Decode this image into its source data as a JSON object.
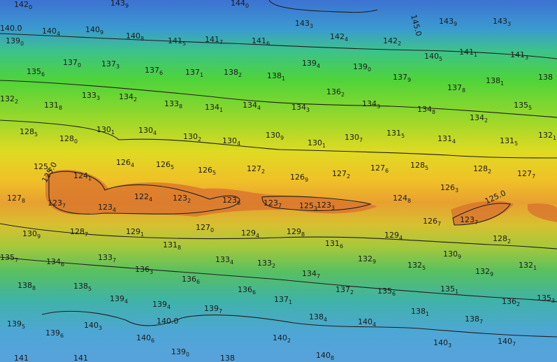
{
  "contour_labels": [
    "140.0",
    "145.0",
    "125.0",
    "125.0",
    "140.0"
  ],
  "soundings": [
    [
      "142",
      "0"
    ],
    [
      "143",
      "9"
    ],
    [
      "144",
      "0"
    ],
    [
      "140",
      "4"
    ],
    [
      "140",
      "9"
    ],
    [
      "140",
      "8"
    ],
    [
      "141",
      "5"
    ],
    [
      "141",
      "7"
    ],
    [
      "141",
      "6"
    ],
    [
      "143",
      "3"
    ],
    [
      "142",
      "4"
    ],
    [
      "142",
      "2"
    ],
    [
      "143",
      "9"
    ],
    [
      "143",
      "3"
    ],
    [
      "139",
      "0"
    ],
    [
      "137",
      "0"
    ],
    [
      "137",
      "3"
    ],
    [
      "137",
      "6"
    ],
    [
      "137",
      "1"
    ],
    [
      "138",
      "2"
    ],
    [
      "138",
      "1"
    ],
    [
      "139",
      "4"
    ],
    [
      "139",
      "0"
    ],
    [
      "140",
      "5"
    ],
    [
      "141",
      "1"
    ],
    [
      "141",
      "3"
    ],
    [
      "135",
      "6"
    ],
    [
      "137",
      "9"
    ],
    [
      "138",
      "1"
    ],
    [
      "138",
      ""
    ],
    [
      "132",
      "2"
    ],
    [
      "133",
      "3"
    ],
    [
      "134",
      "2"
    ],
    [
      "131",
      "8"
    ],
    [
      "133",
      "8"
    ],
    [
      "134",
      "1"
    ],
    [
      "134",
      "4"
    ],
    [
      "134",
      "3"
    ],
    [
      "136",
      "2"
    ],
    [
      "134",
      "3"
    ],
    [
      "134",
      "8"
    ],
    [
      "137",
      "8"
    ],
    [
      "134",
      "2"
    ],
    [
      "135",
      "5"
    ],
    [
      "128",
      "5"
    ],
    [
      "128",
      "0"
    ],
    [
      "130",
      "1"
    ],
    [
      "130",
      "4"
    ],
    [
      "130",
      "2"
    ],
    [
      "130",
      "4"
    ],
    [
      "130",
      "9"
    ],
    [
      "130",
      "1"
    ],
    [
      "130",
      "7"
    ],
    [
      "131",
      "5"
    ],
    [
      "131",
      "4"
    ],
    [
      "131",
      "5"
    ],
    [
      "132",
      "1"
    ],
    [
      "125",
      "6"
    ],
    [
      "126",
      "4"
    ],
    [
      "126",
      "5"
    ],
    [
      "126",
      "5"
    ],
    [
      "127",
      "2"
    ],
    [
      "126",
      "9"
    ],
    [
      "127",
      "2"
    ],
    [
      "127",
      "6"
    ],
    [
      "128",
      "5"
    ],
    [
      "128",
      "2"
    ],
    [
      "127",
      "7"
    ],
    [
      "124",
      "1"
    ],
    [
      "127",
      "8"
    ],
    [
      "126",
      "3"
    ],
    [
      "123",
      "7"
    ],
    [
      "123",
      "4"
    ],
    [
      "122",
      "4"
    ],
    [
      "123",
      "2"
    ],
    [
      "123",
      "6"
    ],
    [
      "123",
      "7"
    ],
    [
      "125",
      "3"
    ],
    [
      "123",
      "3"
    ],
    [
      "124",
      "8"
    ],
    [
      "126",
      "7"
    ],
    [
      "123",
      "7"
    ],
    [
      "127",
      "0"
    ],
    [
      "130",
      "9"
    ],
    [
      "128",
      "7"
    ],
    [
      "129",
      "1"
    ],
    [
      "129",
      "4"
    ],
    [
      "129",
      "8"
    ],
    [
      "131",
      "6"
    ],
    [
      "129",
      "4"
    ],
    [
      "128",
      "2"
    ],
    [
      "130",
      "9"
    ],
    [
      "131",
      "8"
    ],
    [
      "135",
      "7"
    ],
    [
      "134",
      "6"
    ],
    [
      "133",
      "7"
    ],
    [
      "136",
      "3"
    ],
    [
      "133",
      "4"
    ],
    [
      "133",
      "2"
    ],
    [
      "132",
      "9"
    ],
    [
      "132",
      "5"
    ],
    [
      "134",
      "7"
    ],
    [
      "132",
      "9"
    ],
    [
      "132",
      "1"
    ],
    [
      "138",
      "8"
    ],
    [
      "138",
      "5"
    ],
    [
      "136",
      "6"
    ],
    [
      "136",
      "6"
    ],
    [
      "137",
      "2"
    ],
    [
      "135",
      "6"
    ],
    [
      "135",
      "1"
    ],
    [
      "136",
      "2"
    ],
    [
      "135",
      "3"
    ],
    [
      "137",
      "1"
    ],
    [
      "139",
      "4"
    ],
    [
      "139",
      "4"
    ],
    [
      "139",
      "7"
    ],
    [
      "138",
      "1"
    ],
    [
      "139",
      "5"
    ],
    [
      "139",
      "6"
    ],
    [
      "140",
      "3"
    ],
    [
      "138",
      "4"
    ],
    [
      "140",
      "4"
    ],
    [
      "138",
      "7"
    ],
    [
      "140",
      "6"
    ],
    [
      "140",
      "2"
    ],
    [
      "139",
      "0"
    ],
    [
      "140",
      "3"
    ],
    [
      "140",
      "7"
    ],
    [
      "140",
      "8"
    ],
    [
      "138",
      ""
    ],
    [
      "141",
      ""
    ],
    [
      "141",
      ""
    ]
  ]
}
